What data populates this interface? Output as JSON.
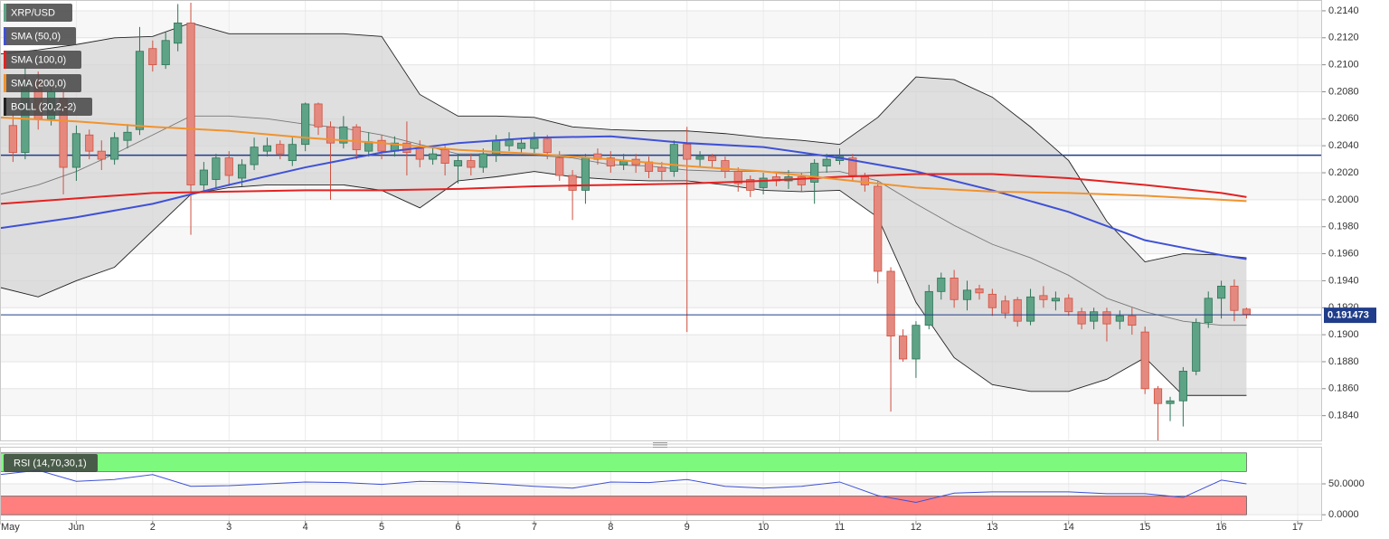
{
  "chart_data": [
    {
      "type": "candlestick",
      "name": "XRP/USD",
      "up_color": "#5fa386",
      "up_stroke": "#2e7558",
      "down_color": "#e5897f",
      "down_stroke": "#d0503f",
      "x": [
        0.17,
        0.33,
        0.5,
        0.67,
        0.83,
        1,
        1.17,
        1.33,
        1.5,
        1.67,
        1.83,
        2,
        2.17,
        2.33,
        2.5,
        2.67,
        2.83,
        3,
        3.17,
        3.33,
        3.5,
        3.67,
        3.83,
        4,
        4.17,
        4.33,
        4.5,
        4.67,
        4.83,
        5,
        5.17,
        5.33,
        5.5,
        5.67,
        5.83,
        6,
        6.17,
        6.33,
        6.5,
        6.67,
        6.83,
        7,
        7.17,
        7.33,
        7.5,
        7.67,
        7.83,
        8,
        8.17,
        8.33,
        8.5,
        8.67,
        8.83,
        9,
        9.17,
        9.33,
        9.5,
        9.67,
        9.83,
        10,
        10.17,
        10.33,
        10.5,
        10.67,
        10.83,
        11,
        11.17,
        11.33,
        11.5,
        11.67,
        11.83,
        12,
        12.17,
        12.33,
        12.5,
        12.67,
        12.83,
        13,
        13.17,
        13.33,
        13.5,
        13.67,
        13.83,
        14,
        14.17,
        14.33,
        14.5,
        14.67,
        14.83,
        15,
        15.17,
        15.33,
        15.5,
        15.67,
        15.83,
        16,
        16.17,
        16.33
      ],
      "open": [
        0.2055,
        0.2035,
        0.2088,
        0.206,
        0.2075,
        0.2024,
        0.2048,
        0.2036,
        0.203,
        0.2044,
        0.2052,
        0.2112,
        0.21,
        0.2116,
        0.2131,
        0.2011,
        0.2015,
        0.2031,
        0.2016,
        0.2026,
        0.2036,
        0.2041,
        0.2029,
        0.2041,
        0.2071,
        0.2054,
        0.2042,
        0.2054,
        0.2036,
        0.2044,
        0.2036,
        0.2042,
        0.2038,
        0.203,
        0.2037,
        0.2025,
        0.2029,
        0.2024,
        0.2034,
        0.204,
        0.2038,
        0.2038,
        0.2045,
        0.2031,
        0.2018,
        0.2007,
        0.2034,
        0.2031,
        0.2026,
        0.203,
        0.2028,
        0.2024,
        0.2021,
        0.2041,
        0.203,
        0.2032,
        0.2029,
        0.2021,
        0.2015,
        0.2009,
        0.2017,
        0.2014,
        0.2017,
        0.2013,
        0.2025,
        0.2029,
        0.2031,
        0.2017,
        0.201,
        0.1947,
        0.1899,
        0.1882,
        0.1907,
        0.1932,
        0.1942,
        0.1926,
        0.1934,
        0.193,
        0.1925,
        0.1926,
        0.191,
        0.1929,
        0.1925,
        0.1927,
        0.1917,
        0.191,
        0.1917,
        0.191,
        0.1914,
        0.1902,
        0.186,
        0.1849,
        0.1851,
        0.1873,
        0.1909,
        0.1927,
        0.1936,
        0.1919
      ],
      "high": [
        0.2064,
        0.2098,
        0.2095,
        0.2085,
        0.208,
        0.2055,
        0.2052,
        0.2044,
        0.205,
        0.2056,
        0.2128,
        0.2118,
        0.2124,
        0.2145,
        0.2146,
        0.2028,
        0.2034,
        0.2036,
        0.203,
        0.2046,
        0.2046,
        0.2044,
        0.2046,
        0.2072,
        0.2072,
        0.2058,
        0.2062,
        0.2056,
        0.205,
        0.2048,
        0.2047,
        0.2058,
        0.2044,
        0.204,
        0.204,
        0.2034,
        0.2034,
        0.2038,
        0.2048,
        0.205,
        0.2046,
        0.205,
        0.2048,
        0.2036,
        0.2022,
        0.2034,
        0.2038,
        0.2036,
        0.2034,
        0.2034,
        0.2032,
        0.2028,
        0.2044,
        0.2054,
        0.2036,
        0.2034,
        0.2032,
        0.2024,
        0.2018,
        0.202,
        0.202,
        0.2022,
        0.202,
        0.203,
        0.2034,
        0.2038,
        0.2034,
        0.202,
        0.2014,
        0.195,
        0.1904,
        0.191,
        0.1937,
        0.1946,
        0.1948,
        0.194,
        0.1937,
        0.1934,
        0.1929,
        0.1928,
        0.1934,
        0.1936,
        0.1932,
        0.193,
        0.192,
        0.192,
        0.192,
        0.1918,
        0.192,
        0.1906,
        0.1862,
        0.1854,
        0.1876,
        0.1912,
        0.1932,
        0.194,
        0.1941,
        0.192
      ],
      "low": [
        0.2028,
        0.203,
        0.2052,
        0.2055,
        0.2004,
        0.2014,
        0.203,
        0.2022,
        0.2026,
        0.2038,
        0.2048,
        0.2095,
        0.2097,
        0.211,
        0.1974,
        0.2005,
        0.2008,
        0.201,
        0.201,
        0.2022,
        0.2032,
        0.203,
        0.2025,
        0.2036,
        0.2048,
        0.2,
        0.2038,
        0.203,
        0.2032,
        0.203,
        0.2032,
        0.2018,
        0.2024,
        0.2026,
        0.2018,
        0.2012,
        0.2018,
        0.202,
        0.2028,
        0.2036,
        0.2034,
        0.2034,
        0.203,
        0.2014,
        0.1985,
        0.1997,
        0.2026,
        0.202,
        0.2022,
        0.202,
        0.2016,
        0.2014,
        0.2017,
        0.1902,
        0.2024,
        0.2024,
        0.2016,
        0.2006,
        0.2002,
        0.2004,
        0.201,
        0.2008,
        0.2006,
        0.1997,
        0.202,
        0.2026,
        0.2014,
        0.2006,
        0.1938,
        0.1843,
        0.188,
        0.1868,
        0.1904,
        0.1926,
        0.192,
        0.1918,
        0.1926,
        0.1914,
        0.1912,
        0.1906,
        0.1907,
        0.192,
        0.1918,
        0.1914,
        0.1904,
        0.1904,
        0.1895,
        0.1904,
        0.19,
        0.1856,
        0.1821,
        0.1836,
        0.1832,
        0.187,
        0.1905,
        0.1912,
        0.191,
        0.1912
      ],
      "close": [
        0.2035,
        0.2088,
        0.206,
        0.208,
        0.2024,
        0.2049,
        0.2036,
        0.203,
        0.2046,
        0.205,
        0.211,
        0.21,
        0.2118,
        0.2131,
        0.2011,
        0.2022,
        0.2031,
        0.2018,
        0.2026,
        0.2039,
        0.204,
        0.2034,
        0.2041,
        0.2071,
        0.2054,
        0.2042,
        0.2054,
        0.2037,
        0.2043,
        0.2036,
        0.2042,
        0.2035,
        0.203,
        0.2034,
        0.2027,
        0.2029,
        0.2024,
        0.2034,
        0.2044,
        0.2045,
        0.2042,
        0.2045,
        0.2035,
        0.2018,
        0.2007,
        0.2031,
        0.203,
        0.2025,
        0.2029,
        0.2026,
        0.2021,
        0.2021,
        0.2041,
        0.203,
        0.2032,
        0.2029,
        0.2021,
        0.2012,
        0.2007,
        0.2016,
        0.2014,
        0.2017,
        0.2011,
        0.2027,
        0.203,
        0.2032,
        0.2018,
        0.2011,
        0.1947,
        0.1899,
        0.1882,
        0.1907,
        0.1932,
        0.1942,
        0.1926,
        0.1933,
        0.1931,
        0.192,
        0.1916,
        0.191,
        0.1928,
        0.1926,
        0.1927,
        0.1917,
        0.1908,
        0.1917,
        0.1908,
        0.1914,
        0.1907,
        0.186,
        0.1849,
        0.1851,
        0.1873,
        0.1909,
        0.1927,
        0.1936,
        0.1918,
        0.1915
      ],
      "series": [
        {
          "name": "SMA (50,0)",
          "color": "#3f51d6",
          "x": [
            0,
            1,
            2,
            3,
            4,
            5,
            6,
            7,
            8,
            9,
            10,
            11,
            12,
            13,
            14,
            15,
            16,
            16.33
          ],
          "values": [
            0.1979,
            0.1987,
            0.1997,
            0.2011,
            0.2024,
            0.2035,
            0.2042,
            0.2046,
            0.2047,
            0.2042,
            0.2039,
            0.2031,
            0.2021,
            0.2007,
            0.1991,
            0.197,
            0.1959,
            0.1956
          ]
        },
        {
          "name": "SMA (100,0)",
          "color": "#e32222",
          "x": [
            0,
            1,
            2,
            3,
            4,
            5,
            6,
            7,
            8,
            9,
            10,
            11,
            12,
            13,
            14,
            15,
            16,
            16.33
          ],
          "values": [
            0.1997,
            0.2001,
            0.2005,
            0.2006,
            0.2007,
            0.2007,
            0.2008,
            0.201,
            0.2011,
            0.2012,
            0.2014,
            0.2017,
            0.2019,
            0.2019,
            0.2016,
            0.2011,
            0.2005,
            0.2002
          ]
        },
        {
          "name": "SMA (200,0)",
          "color": "#f0932f",
          "x": [
            0,
            1,
            2,
            3,
            4,
            5,
            6,
            7,
            8,
            9,
            10,
            11,
            12,
            13,
            14,
            15,
            16,
            16.33
          ],
          "values": [
            0.2061,
            0.2058,
            0.2054,
            0.2051,
            0.2046,
            0.2042,
            0.2037,
            0.2034,
            0.203,
            0.2025,
            0.2021,
            0.2015,
            0.2009,
            0.2006,
            0.2005,
            0.2003,
            0.2,
            0.1999
          ]
        }
      ],
      "bollinger": {
        "name": "BOLL (20,2,-2)",
        "color": "#222222",
        "middle_color": "#777777",
        "fill": "#d4d4d4",
        "x": [
          0,
          0.5,
          1,
          1.5,
          2,
          2.5,
          3,
          3.5,
          4,
          4.5,
          5,
          5.5,
          6,
          6.5,
          7,
          7.5,
          8,
          8.5,
          9,
          9.5,
          10,
          10.5,
          11,
          11.5,
          12,
          12.5,
          13,
          13.5,
          14,
          14.5,
          15,
          15.5,
          16,
          16.33
        ],
        "upper": [
          0.2108,
          0.2111,
          0.2115,
          0.212,
          0.2121,
          0.2131,
          0.2123,
          0.2123,
          0.2123,
          0.2123,
          0.2121,
          0.2078,
          0.2062,
          0.2062,
          0.2061,
          0.2054,
          0.2052,
          0.2051,
          0.2051,
          0.2049,
          0.2046,
          0.2044,
          0.2041,
          0.2061,
          0.2091,
          0.2089,
          0.2076,
          0.2054,
          0.2029,
          0.1984,
          0.1954,
          0.196,
          0.1959,
          0.1957
        ],
        "middle": [
          0.2004,
          0.2011,
          0.2021,
          0.2034,
          0.2048,
          0.2062,
          0.2062,
          0.206,
          0.2056,
          0.2053,
          0.2048,
          0.2041,
          0.2034,
          0.2034,
          0.2033,
          0.2031,
          0.2026,
          0.2025,
          0.2022,
          0.2021,
          0.2021,
          0.202,
          0.2021,
          0.2014,
          0.1997,
          0.1981,
          0.1967,
          0.1957,
          0.1944,
          0.1927,
          0.1917,
          0.191,
          0.1907,
          0.1907
        ],
        "lower": [
          0.1935,
          0.1928,
          0.194,
          0.195,
          0.1977,
          0.2004,
          0.2009,
          0.2011,
          0.2011,
          0.2011,
          0.2007,
          0.1994,
          0.2014,
          0.2017,
          0.2021,
          0.2017,
          0.2015,
          0.2014,
          0.2014,
          0.2011,
          0.2007,
          0.2006,
          0.2007,
          0.1987,
          0.1924,
          0.1883,
          0.1863,
          0.1858,
          0.1858,
          0.1867,
          0.1883,
          0.1855,
          0.1855,
          0.1855
        ]
      },
      "reference_line": {
        "value": 0.2033,
        "color": "#1f3d8a"
      },
      "last_price": {
        "value": 0.191473,
        "color": "#1f3d8a"
      },
      "xlim": [
        0,
        17.32
      ],
      "ylim": [
        0.1821,
        0.2148
      ],
      "yticks": [
        {
          "value": 0.184,
          "label": "0.1840"
        },
        {
          "value": 0.186,
          "label": "0.1860"
        },
        {
          "value": 0.188,
          "label": "0.1880"
        },
        {
          "value": 0.19,
          "label": "0.1900"
        },
        {
          "value": 0.192,
          "label": "0.1920"
        },
        {
          "value": 0.194,
          "label": "0.1940"
        },
        {
          "value": 0.196,
          "label": "0.1960"
        },
        {
          "value": 0.198,
          "label": "0.1980"
        },
        {
          "value": 0.2,
          "label": "0.2000"
        },
        {
          "value": 0.202,
          "label": "0.2020"
        },
        {
          "value": 0.204,
          "label": "0.2040"
        },
        {
          "value": 0.206,
          "label": "0.2060"
        },
        {
          "value": 0.208,
          "label": "0.2080"
        },
        {
          "value": 0.21,
          "label": "0.2100"
        },
        {
          "value": 0.212,
          "label": "0.2120"
        },
        {
          "value": 0.214,
          "label": "0.2140"
        }
      ],
      "grid": true
    },
    {
      "type": "line",
      "series": [
        {
          "name": "RSI (14,70,30,1)",
          "color": "#3f51d6",
          "x": [
            0,
            0.5,
            1,
            1.5,
            2,
            2.5,
            3,
            3.5,
            4,
            4.5,
            5,
            5.5,
            6,
            6.5,
            7,
            7.5,
            8,
            8.5,
            9,
            9.5,
            10,
            10.5,
            11,
            11.5,
            12,
            12.5,
            13,
            13.5,
            14,
            14.5,
            15,
            15.5,
            16,
            16.33
          ],
          "values": [
            65,
            72,
            54,
            57,
            65,
            46,
            47,
            50,
            53,
            52,
            49,
            54,
            53,
            50,
            46,
            43,
            53,
            52,
            57,
            46,
            43,
            46,
            53,
            31,
            20,
            35,
            37,
            37,
            37,
            34,
            34,
            28,
            56,
            50
          ]
        }
      ],
      "zones": [
        {
          "from": 70,
          "to": 100,
          "color": "#7dfa7d"
        },
        {
          "from": 0,
          "to": 30,
          "color": "#ff7f7f"
        }
      ],
      "xlim": [
        0,
        17.32
      ],
      "xticks": [
        {
          "value": 0,
          "label": "May"
        },
        {
          "value": 1,
          "label": "Jun"
        },
        2,
        3,
        4,
        5,
        6,
        7,
        8,
        9,
        10,
        11,
        12,
        13,
        14,
        15,
        16,
        17
      ],
      "ylim": [
        -10,
        110
      ],
      "yticks": [
        {
          "value": 0,
          "label": "0.0000"
        },
        {
          "value": 50,
          "label": "50.0000"
        }
      ],
      "grid": true
    }
  ]
}
